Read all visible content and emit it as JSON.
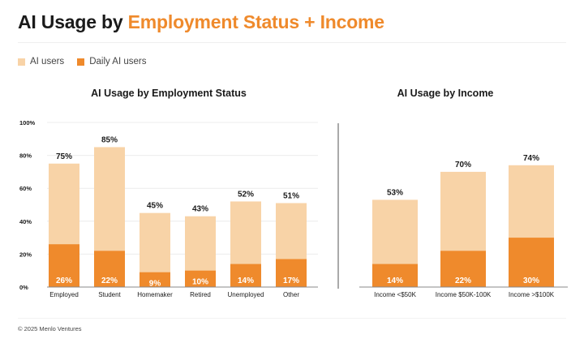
{
  "title": {
    "part1": "AI Usage by ",
    "part2": "Employment Status + Income"
  },
  "legend": [
    {
      "label": "AI users",
      "color": "#f8d3a7"
    },
    {
      "label": "Daily AI users",
      "color": "#ef8a2c"
    }
  ],
  "colors": {
    "ai_users": "#f8d3a7",
    "daily_ai_users": "#ef8a2c",
    "accent": "#ef8a2c"
  },
  "footer": "© 2025 Menlo Ventures",
  "chart_data": [
    {
      "type": "bar",
      "title": "AI Usage by Employment Status",
      "categories": [
        "Employed",
        "Student",
        "Homemaker",
        "Retired",
        "Unemployed",
        "Other"
      ],
      "series": [
        {
          "name": "AI users",
          "values": [
            75,
            85,
            45,
            43,
            52,
            51
          ]
        },
        {
          "name": "Daily AI users",
          "values": [
            26,
            22,
            9,
            10,
            14,
            17
          ]
        }
      ],
      "ylim": [
        0,
        100
      ],
      "yticks": [
        "0%",
        "20%",
        "40%",
        "60%",
        "80%",
        "100%"
      ],
      "value_suffix": "%",
      "legend": "top-left"
    },
    {
      "type": "bar",
      "title": "AI Usage by Income",
      "categories": [
        "Income <$50K",
        "Income $50K-100K",
        "Income >$100K"
      ],
      "series": [
        {
          "name": "AI users",
          "values": [
            53,
            70,
            74
          ]
        },
        {
          "name": "Daily AI users",
          "values": [
            14,
            22,
            30
          ]
        }
      ],
      "ylim": [
        0,
        100
      ],
      "value_suffix": "%"
    }
  ]
}
